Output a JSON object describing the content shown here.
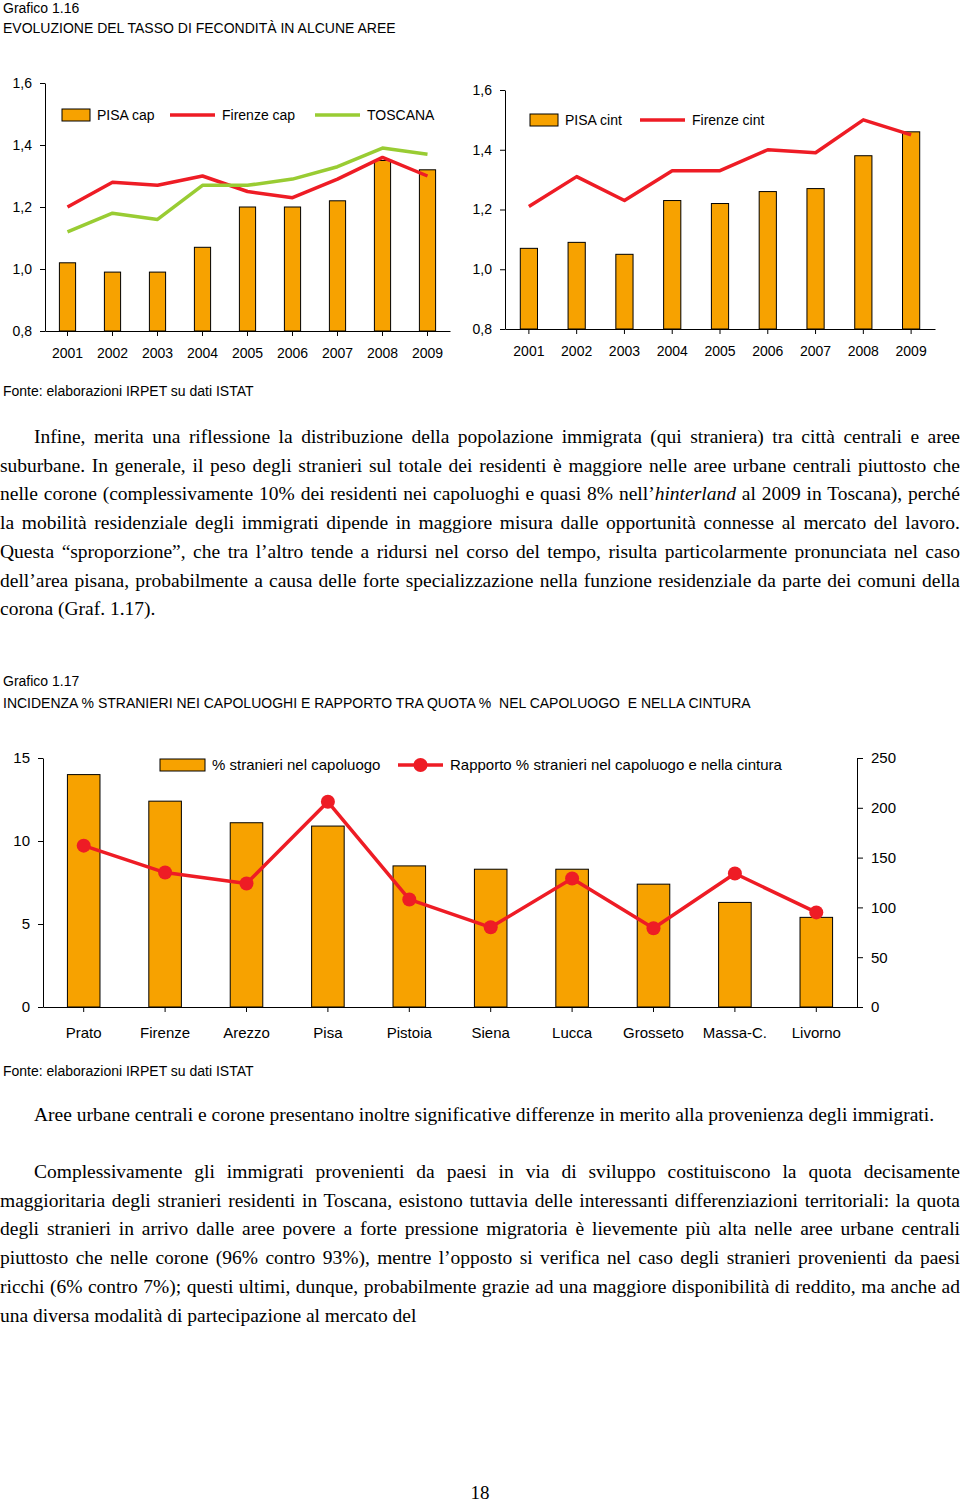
{
  "document": {
    "figures": [
      {
        "label": "Grafico 1.16",
        "title": "EVOLUZIONE DEL TASSO DI FECONDITÀ IN ALCUNE AREE",
        "source": "Fonte: elaborazioni IRPET su dati ISTAT"
      },
      {
        "label": "Grafico 1.17",
        "title": "INCIDENZA % STRANIERI NEI CAPOLUOGHI E RAPPORTO TRA QUOTA %  NEL CAPOLUOGO  E NELLA CINTURA",
        "source": "Fonte: elaborazioni IRPET su dati ISTAT"
      }
    ],
    "paragraphs": [
      {
        "runs": [
          {
            "text": "Infine, merita una riflessione la distribuzione della popolazione immigrata (qui straniera) tra città centrali e aree suburbane. In generale, il peso degli stranieri sul totale dei residenti è maggiore nelle aree urbane centrali piuttosto che nelle corone (complessivamente 10% dei residenti nei capoluoghi e quasi 8% nell’"
          },
          {
            "text": "hinterland",
            "italic": true
          },
          {
            "text": " al 2009 in Toscana), perché la mobilità residenziale degli immigrati dipende in maggiore misura dalle opportunità connesse al mercato del lavoro. Questa “sproporzione”, che tra l’altro tende a ridursi nel corso del tempo, risulta particolarmente pronunciata nel caso dell’area pisana, probabilmente a causa delle forte specializzazione nella funzione residenziale da parte dei comuni della corona (Graf. 1.17)."
          }
        ]
      },
      {
        "runs": [
          {
            "text": "Aree urbane centrali e corone presentano inoltre significative differenze in merito alla provenienza degli immigrati."
          }
        ]
      },
      {
        "runs": [
          {
            "text": "Complessivamente gli immigrati provenienti da paesi in via di sviluppo costituiscono la quota decisamente maggioritaria degli stranieri residenti in Toscana, esistono tuttavia delle interessanti differenziazioni territoriali: la quota degli stranieri in arrivo dalle aree povere a forte pressione migratoria è lievemente più alta nelle aree urbane centrali piuttosto che nelle corone (96% contro 93%), mentre l’opposto si verifica nel caso degli stranieri provenienti da paesi ricchi (6% contro 7%); questi ultimi, dunque, probabilmente grazie ad una maggiore disponibilità di reddito, ma anche ad una diversa modalità di partecipazione al mercato del"
          }
        ]
      }
    ],
    "page_number": 18
  },
  "chart_data": [
    {
      "type": "bar",
      "categories": [
        "2001",
        "2002",
        "2003",
        "2004",
        "2005",
        "2006",
        "2007",
        "2008",
        "2009"
      ],
      "series": [
        {
          "name": "PISA cap",
          "type": "bar",
          "color": "#f7a200",
          "values": [
            1.02,
            0.99,
            0.99,
            1.07,
            1.2,
            1.2,
            1.22,
            1.35,
            1.32
          ]
        },
        {
          "name": "Firenze cap",
          "type": "line",
          "color": "#ee1c25",
          "values": [
            1.2,
            1.28,
            1.27,
            1.3,
            1.25,
            1.23,
            1.29,
            1.36,
            1.3
          ]
        },
        {
          "name": "TOSCANA",
          "type": "line",
          "color": "#99cc33",
          "values": [
            1.12,
            1.18,
            1.16,
            1.27,
            1.27,
            1.29,
            1.33,
            1.39,
            1.37
          ]
        }
      ],
      "ylim": [
        0.8,
        1.6
      ],
      "yticks": [
        {
          "value": 0.8,
          "label": "0,8"
        },
        {
          "value": 1.0,
          "label": "1,0"
        },
        {
          "value": 1.2,
          "label": "1,2"
        },
        {
          "value": 1.4,
          "label": "1,4"
        },
        {
          "value": 1.6,
          "label": "1,6"
        }
      ],
      "grid": false,
      "legend": "top"
    },
    {
      "type": "bar",
      "categories": [
        "2001",
        "2002",
        "2003",
        "2004",
        "2005",
        "2006",
        "2007",
        "2008",
        "2009"
      ],
      "series": [
        {
          "name": "PISA cint",
          "type": "bar",
          "color": "#f7a200",
          "values": [
            1.07,
            1.09,
            1.05,
            1.23,
            1.22,
            1.26,
            1.27,
            1.38,
            1.46
          ]
        },
        {
          "name": "Firenze cint",
          "type": "line",
          "color": "#ee1c25",
          "values": [
            1.21,
            1.31,
            1.23,
            1.33,
            1.33,
            1.4,
            1.39,
            1.5,
            1.45
          ]
        }
      ],
      "ylim": [
        0.8,
        1.6
      ],
      "yticks": [
        {
          "value": 0.8,
          "label": "0,8"
        },
        {
          "value": 1.0,
          "label": "1,0"
        },
        {
          "value": 1.2,
          "label": "1,2"
        },
        {
          "value": 1.4,
          "label": "1,4"
        },
        {
          "value": 1.6,
          "label": "1,6"
        }
      ],
      "grid": false,
      "legend": "top"
    },
    {
      "type": "bar",
      "categories": [
        "Prato",
        "Firenze",
        "Arezzo",
        "Pisa",
        "Pistoia",
        "Siena",
        "Lucca",
        "Grosseto",
        "Massa-C.",
        "Livorno"
      ],
      "series": [
        {
          "name": "% stranieri nel capoluogo",
          "type": "bar",
          "color": "#f7a200",
          "values": [
            14.0,
            12.4,
            11.1,
            10.9,
            8.5,
            8.3,
            8.3,
            7.4,
            6.3,
            5.4
          ]
        },
        {
          "name": "Rapporto % stranieri nel capoluogo e nella cintura",
          "type": "line",
          "axis": "y2",
          "marker": "circle",
          "color": "#ee1c25",
          "values": [
            162,
            135,
            124,
            206,
            108,
            80,
            129,
            79,
            134,
            95
          ]
        }
      ],
      "ylim": [
        0,
        15
      ],
      "yticks": [
        0,
        5,
        10,
        15
      ],
      "y2lim": [
        0,
        250
      ],
      "y2ticks": [
        0,
        50,
        100,
        150,
        200,
        250
      ],
      "grid": false,
      "legend": "top"
    }
  ]
}
